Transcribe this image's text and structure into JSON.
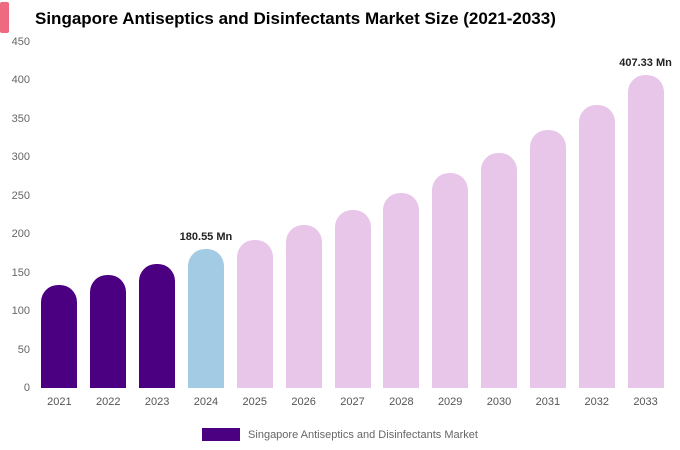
{
  "page_title": "Singapore Antiseptics and Disinfectants Market Size (2021-2033)",
  "accent_color": "#EE6A80",
  "legend": {
    "label": "Singapore Antiseptics and Disinfectants Market",
    "swatch_color": "#4B0082"
  },
  "chart_data": {
    "type": "bar",
    "title": "Singapore Antiseptics and Disinfectants Market Size (2021-2033)",
    "categories": [
      "2021",
      "2022",
      "2023",
      "2024",
      "2025",
      "2026",
      "2027",
      "2028",
      "2029",
      "2030",
      "2031",
      "2032",
      "2033"
    ],
    "values": [
      134,
      147,
      161,
      180.55,
      193,
      212,
      232,
      254,
      279,
      306,
      336,
      368,
      407.33
    ],
    "unit": "Mn",
    "bar_colors": [
      "#4B0082",
      "#4B0082",
      "#4B0082",
      "#A3CBE3",
      "#E8C6E9",
      "#E8C6E9",
      "#E8C6E9",
      "#E8C6E9",
      "#E8C6E9",
      "#E8C6E9",
      "#E8C6E9",
      "#E8C6E9",
      "#E8C6E9"
    ],
    "data_labels": [
      {
        "index": 3,
        "text": "180.55 Mn"
      },
      {
        "index": 12,
        "text": "407.33 Mn"
      }
    ],
    "ylim": [
      0,
      450
    ],
    "yticks": [
      0,
      50,
      100,
      150,
      200,
      250,
      300,
      350,
      400,
      450
    ],
    "grid": false,
    "legend_position": "bottom",
    "xlabel": "",
    "ylabel": ""
  }
}
